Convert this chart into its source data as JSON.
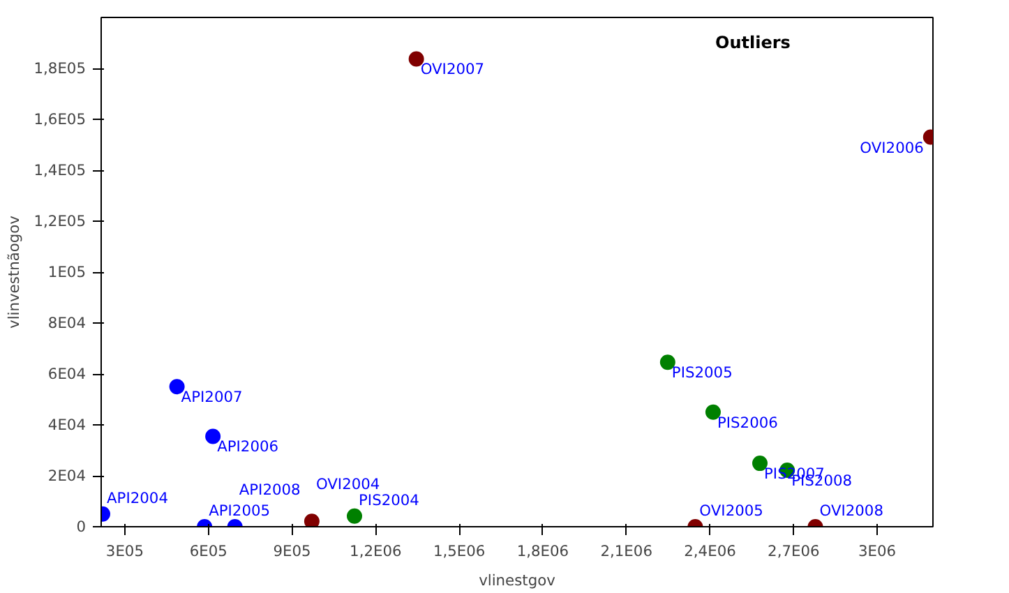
{
  "chart_data": {
    "type": "scatter",
    "xlabel": "vlinestgov",
    "ylabel": "vlinvestnãogov",
    "xlim": [
      215000,
      3200000
    ],
    "ylim": [
      0,
      200000
    ],
    "xticks": [
      {
        "value": 300000,
        "label": "3E05"
      },
      {
        "value": 600000,
        "label": "6E05"
      },
      {
        "value": 900000,
        "label": "9E05"
      },
      {
        "value": 1200000,
        "label": "1,2E06"
      },
      {
        "value": 1500000,
        "label": "1,5E06"
      },
      {
        "value": 1800000,
        "label": "1,8E06"
      },
      {
        "value": 2100000,
        "label": "2,1E06"
      },
      {
        "value": 2400000,
        "label": "2,4E06"
      },
      {
        "value": 2700000,
        "label": "2,7E06"
      },
      {
        "value": 3000000,
        "label": "3E06"
      }
    ],
    "yticks": [
      {
        "value": 0,
        "label": "0"
      },
      {
        "value": 20000,
        "label": "2E04"
      },
      {
        "value": 40000,
        "label": "4E04"
      },
      {
        "value": 60000,
        "label": "6E04"
      },
      {
        "value": 80000,
        "label": "8E04"
      },
      {
        "value": 100000,
        "label": "1E05"
      },
      {
        "value": 120000,
        "label": "1,2E05"
      },
      {
        "value": 140000,
        "label": "1,4E05"
      },
      {
        "value": 160000,
        "label": "1,6E05"
      },
      {
        "value": 180000,
        "label": "1,8E05"
      }
    ],
    "marker": "circle",
    "grid": false,
    "series": [
      {
        "color": "#0000ff",
        "x": [
          220000,
          487000,
          616000,
          586000,
          695000
        ],
        "values": [
          5000,
          55000,
          35500,
          0,
          0
        ]
      },
      {
        "color": "#008000",
        "x": [
          1124000,
          2248000,
          2411000,
          2579000,
          2677000
        ],
        "values": [
          4200,
          64600,
          45000,
          24900,
          22200
        ]
      },
      {
        "color": "#800000",
        "x": [
          971000,
          2347000,
          3192000,
          1346000,
          2778000
        ],
        "values": [
          2100,
          0,
          153000,
          183700,
          0
        ]
      }
    ],
    "annotations": [
      {
        "text": "API2004",
        "x": 220000,
        "y": 5000
      },
      {
        "text": "API2007",
        "x": 487000,
        "y": 55000
      },
      {
        "text": "API2006",
        "x": 616000,
        "y": 35500
      },
      {
        "text": "API2005",
        "x": 586000,
        "y": 0
      },
      {
        "text": "API2008",
        "x": 695000,
        "y": 0
      },
      {
        "text": "PIS2004",
        "x": 1124000,
        "y": 4200
      },
      {
        "text": "PIS2005",
        "x": 2248000,
        "y": 64600
      },
      {
        "text": "PIS2006",
        "x": 2411000,
        "y": 45000
      },
      {
        "text": "PIS2007",
        "x": 2579000,
        "y": 24900
      },
      {
        "text": "PIS2008",
        "x": 2677000,
        "y": 22200
      },
      {
        "text": "OVI2004",
        "x": 971000,
        "y": 2100
      },
      {
        "text": "OVI2005",
        "x": 2347000,
        "y": 0
      },
      {
        "text": "OVI2006",
        "x": 3192000,
        "y": 153000
      },
      {
        "text": "OVI2007",
        "x": 1346000,
        "y": 183700
      },
      {
        "text": "OVI2008",
        "x": 2778000,
        "y": 0
      },
      "Outliers"
    ]
  }
}
